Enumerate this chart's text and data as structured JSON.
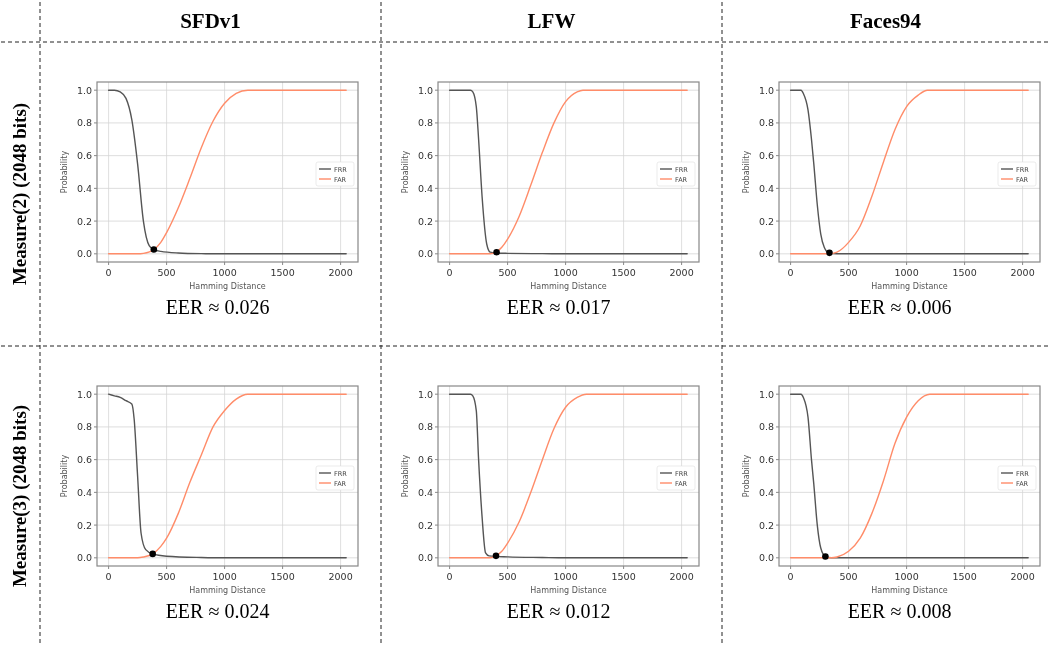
{
  "chart_data": [
    {
      "type": "line",
      "title": "SFDv1",
      "xlabel": "Hamming Distance",
      "ylabel": "Probability",
      "xlim": [
        -100,
        2150
      ],
      "xticks": [
        0,
        500,
        1000,
        1500,
        2000
      ],
      "ylim": [
        -0.05,
        1.05
      ],
      "yticks": [
        {
          "value": 0,
          "label": "0.0"
        },
        {
          "value": 0.2,
          "label": "0.2"
        },
        {
          "value": 0.4,
          "label": "0.4"
        },
        {
          "value": 0.6,
          "label": "0.6"
        },
        {
          "value": 0.8,
          "label": "0.8"
        },
        {
          "value": 1,
          "label": "1.0"
        }
      ],
      "grid": true,
      "legend": "right",
      "annotations": [
        "EER ≈ 0.026",
        "Measure(2) (2048 bits)"
      ],
      "series": [
        {
          "name": "FRR",
          "color": "#555555",
          "x": [
            0,
            50,
            100,
            150,
            200,
            250,
            300,
            350,
            390,
            450,
            600,
            800,
            1000,
            2048
          ],
          "values": [
            1,
            1,
            0.99,
            0.95,
            0.82,
            0.55,
            0.2,
            0.05,
            0.026,
            0.015,
            0.005,
            0.001,
            0,
            0
          ]
        },
        {
          "name": "FAR",
          "color": "#ff8c69",
          "x": [
            0,
            250,
            300,
            390,
            450,
            500,
            600,
            700,
            800,
            900,
            1000,
            1100,
            1200,
            2048
          ],
          "values": [
            0,
            0,
            0.003,
            0.026,
            0.07,
            0.13,
            0.28,
            0.46,
            0.65,
            0.81,
            0.92,
            0.98,
            1,
            1
          ]
        },
        {
          "type": "scatter",
          "marker": "circle",
          "color": "#000000",
          "x": [
            390
          ],
          "values": [
            0.026
          ]
        }
      ]
    },
    {
      "type": "line",
      "title": "LFW",
      "xlabel": "Hamming Distance",
      "ylabel": "Probability",
      "xlim": [
        -100,
        2150
      ],
      "xticks": [
        0,
        500,
        1000,
        1500,
        2000
      ],
      "ylim": [
        -0.05,
        1.05
      ],
      "yticks": [
        {
          "value": 0,
          "label": "0.0"
        },
        {
          "value": 0.2,
          "label": "0.2"
        },
        {
          "value": 0.4,
          "label": "0.4"
        },
        {
          "value": 0.6,
          "label": "0.6"
        },
        {
          "value": 0.8,
          "label": "0.8"
        },
        {
          "value": 1,
          "label": "1.0"
        }
      ],
      "grid": true,
      "legend": "right",
      "annotations": [
        "EER ≈ 0.017"
      ],
      "series": [
        {
          "name": "FRR",
          "color": "#555555",
          "x": [
            0,
            180,
            200,
            230,
            250,
            280,
            320,
            350,
            400,
            500,
            800,
            1000,
            2048
          ],
          "values": [
            1,
            1,
            0.99,
            0.9,
            0.7,
            0.35,
            0.06,
            0.01,
            0.005,
            0.003,
            0.001,
            0,
            0
          ]
        },
        {
          "name": "FAR",
          "color": "#ff8c69",
          "x": [
            0,
            350,
            400,
            450,
            500,
            600,
            700,
            800,
            900,
            1000,
            1100,
            1150,
            2048
          ],
          "values": [
            0,
            0,
            0.01,
            0.04,
            0.09,
            0.23,
            0.42,
            0.62,
            0.8,
            0.93,
            0.99,
            1,
            1
          ]
        },
        {
          "type": "scatter",
          "marker": "circle",
          "color": "#000000",
          "x": [
            405
          ],
          "values": [
            0.01
          ]
        }
      ]
    },
    {
      "type": "line",
      "title": "Faces94",
      "xlabel": "Hamming Distance",
      "ylabel": "Probability",
      "xlim": [
        -100,
        2150
      ],
      "xticks": [
        0,
        500,
        1000,
        1500,
        2000
      ],
      "ylim": [
        -0.05,
        1.05
      ],
      "yticks": [
        {
          "value": 0,
          "label": "0.0"
        },
        {
          "value": 0.2,
          "label": "0.2"
        },
        {
          "value": 0.4,
          "label": "0.4"
        },
        {
          "value": 0.6,
          "label": "0.6"
        },
        {
          "value": 0.8,
          "label": "0.8"
        },
        {
          "value": 1,
          "label": "1.0"
        }
      ],
      "grid": true,
      "legend": "right",
      "annotations": [
        "EER ≈ 0.006"
      ],
      "series": [
        {
          "name": "FRR",
          "color": "#555555",
          "x": [
            0,
            90,
            110,
            150,
            180,
            200,
            230,
            260,
            290,
            330,
            400,
            2048
          ],
          "values": [
            1,
            1,
            0.98,
            0.88,
            0.7,
            0.55,
            0.3,
            0.12,
            0.04,
            0.006,
            0,
            0
          ]
        },
        {
          "name": "FAR",
          "color": "#ff8c69",
          "x": [
            0,
            330,
            400,
            500,
            600,
            700,
            800,
            900,
            1000,
            1100,
            1180,
            2048
          ],
          "values": [
            0,
            0,
            0.01,
            0.07,
            0.17,
            0.35,
            0.56,
            0.76,
            0.9,
            0.97,
            1,
            1
          ]
        },
        {
          "type": "scatter",
          "marker": "circle",
          "color": "#000000",
          "x": [
            335
          ],
          "values": [
            0.006
          ]
        }
      ]
    },
    {
      "type": "line",
      "xlabel": "Hamming Distance",
      "ylabel": "Probability",
      "xlim": [
        -100,
        2150
      ],
      "xticks": [
        0,
        500,
        1000,
        1500,
        2000
      ],
      "ylim": [
        -0.05,
        1.05
      ],
      "yticks": [
        {
          "value": 0,
          "label": "0.0"
        },
        {
          "value": 0.2,
          "label": "0.2"
        },
        {
          "value": 0.4,
          "label": "0.4"
        },
        {
          "value": 0.6,
          "label": "0.6"
        },
        {
          "value": 0.8,
          "label": "0.8"
        },
        {
          "value": 1,
          "label": "1.0"
        }
      ],
      "grid": true,
      "legend": "right",
      "annotations": [
        "EER ≈ 0.024",
        "Measure(3) (2048 bits)"
      ],
      "series": [
        {
          "name": "FRR",
          "color": "#555555",
          "x": [
            0,
            50,
            100,
            150,
            200,
            220,
            250,
            280,
            320,
            380,
            500,
            800,
            1000,
            2048
          ],
          "values": [
            1,
            0.99,
            0.98,
            0.96,
            0.94,
            0.85,
            0.5,
            0.15,
            0.05,
            0.024,
            0.01,
            0.002,
            0,
            0
          ]
        },
        {
          "name": "FAR",
          "color": "#ff8c69",
          "x": [
            0,
            250,
            300,
            380,
            450,
            500,
            600,
            700,
            800,
            900,
            1000,
            1100,
            1200,
            2048
          ],
          "values": [
            0,
            0,
            0.005,
            0.024,
            0.07,
            0.12,
            0.27,
            0.46,
            0.63,
            0.8,
            0.9,
            0.97,
            1,
            1
          ]
        },
        {
          "type": "scatter",
          "marker": "circle",
          "color": "#000000",
          "x": [
            380
          ],
          "values": [
            0.024
          ]
        }
      ]
    },
    {
      "type": "line",
      "xlabel": "Hamming Distance",
      "ylabel": "Probability",
      "xlim": [
        -100,
        2150
      ],
      "xticks": [
        0,
        500,
        1000,
        1500,
        2000
      ],
      "ylim": [
        -0.05,
        1.05
      ],
      "yticks": [
        {
          "value": 0,
          "label": "0.0"
        },
        {
          "value": 0.2,
          "label": "0.2"
        },
        {
          "value": 0.4,
          "label": "0.4"
        },
        {
          "value": 0.6,
          "label": "0.6"
        },
        {
          "value": 0.8,
          "label": "0.8"
        },
        {
          "value": 1,
          "label": "1.0"
        }
      ],
      "grid": true,
      "legend": "right",
      "annotations": [
        "EER ≈ 0.012"
      ],
      "series": [
        {
          "name": "FRR",
          "color": "#555555",
          "x": [
            0,
            180,
            200,
            230,
            250,
            280,
            310,
            340,
            500,
            800,
            1000,
            2048
          ],
          "values": [
            1,
            1,
            0.99,
            0.9,
            0.6,
            0.25,
            0.03,
            0.012,
            0.006,
            0.002,
            0,
            0
          ]
        },
        {
          "name": "FAR",
          "color": "#ff8c69",
          "x": [
            0,
            350,
            400,
            450,
            500,
            600,
            700,
            800,
            900,
            1000,
            1100,
            1180,
            2048
          ],
          "values": [
            0,
            0,
            0.012,
            0.04,
            0.09,
            0.22,
            0.4,
            0.6,
            0.79,
            0.92,
            0.98,
            1,
            1
          ]
        },
        {
          "type": "scatter",
          "marker": "circle",
          "color": "#000000",
          "x": [
            400
          ],
          "values": [
            0.012
          ]
        }
      ]
    },
    {
      "type": "line",
      "xlabel": "Hamming Distance",
      "ylabel": "Probability",
      "xlim": [
        -100,
        2150
      ],
      "xticks": [
        0,
        500,
        1000,
        1500,
        2000
      ],
      "ylim": [
        -0.05,
        1.05
      ],
      "yticks": [
        {
          "value": 0,
          "label": "0.0"
        },
        {
          "value": 0.2,
          "label": "0.2"
        },
        {
          "value": 0.4,
          "label": "0.4"
        },
        {
          "value": 0.6,
          "label": "0.6"
        },
        {
          "value": 0.8,
          "label": "0.8"
        },
        {
          "value": 1,
          "label": "1.0"
        }
      ],
      "grid": true,
      "legend": "right",
      "annotations": [
        "EER ≈ 0.008"
      ],
      "series": [
        {
          "name": "FRR",
          "color": "#555555",
          "x": [
            0,
            90,
            110,
            150,
            180,
            200,
            230,
            260,
            300,
            350,
            2048
          ],
          "values": [
            1,
            1,
            0.98,
            0.86,
            0.6,
            0.45,
            0.2,
            0.06,
            0.008,
            0,
            0
          ]
        },
        {
          "name": "FAR",
          "color": "#ff8c69",
          "x": [
            0,
            350,
            400,
            500,
            600,
            700,
            800,
            900,
            1000,
            1100,
            1200,
            2048
          ],
          "values": [
            0,
            0,
            0.005,
            0.04,
            0.12,
            0.27,
            0.47,
            0.7,
            0.86,
            0.96,
            1,
            1
          ]
        },
        {
          "type": "scatter",
          "marker": "circle",
          "color": "#000000",
          "x": [
            300
          ],
          "values": [
            0.008
          ]
        }
      ]
    }
  ]
}
